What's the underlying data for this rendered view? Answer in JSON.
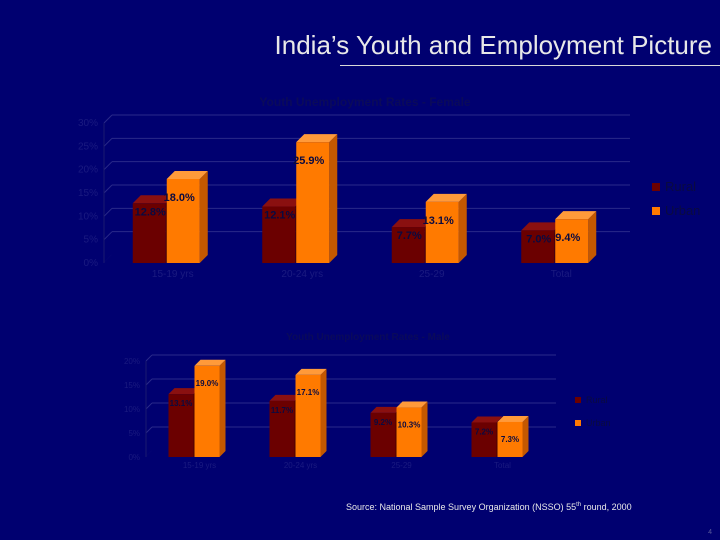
{
  "slide": {
    "title": "India’s Youth and Employment Picture",
    "source_prefix": "Source:  National Sample Survey Organization (NSSO) 55",
    "source_sup": "th",
    "source_suffix": " round, 2000",
    "page_number": "4"
  },
  "colors": {
    "background": "#000070",
    "rural": "#6b0000",
    "urban": "#ff7a00"
  },
  "chart_data": [
    {
      "type": "bar",
      "title": "Youth Unemployment Rates - Female",
      "categories": [
        "15-19 yrs",
        "20-24 yrs",
        "25-29",
        "Total"
      ],
      "series": [
        {
          "name": "Rural",
          "values": [
            12.8,
            12.1,
            7.7,
            7.0
          ],
          "labels": [
            "12.8%",
            "12.1%",
            "7.7%",
            "7.0%"
          ]
        },
        {
          "name": "Urban",
          "values": [
            18.0,
            25.9,
            13.1,
            9.4
          ],
          "labels": [
            "18.0%",
            "25.9%",
            "13.1%",
            "9.4%"
          ]
        }
      ],
      "yticks": [
        "0%",
        "5%",
        "10%",
        "15%",
        "20%",
        "25%",
        "30%"
      ],
      "ylim": [
        0,
        30
      ],
      "legend": "right"
    },
    {
      "type": "bar",
      "title": "Youth Unemployment Rates - Male",
      "categories": [
        "15-19 yrs",
        "20-24 yrs",
        "25-29",
        "Total"
      ],
      "series": [
        {
          "name": "Rural",
          "values": [
            13.1,
            11.7,
            9.2,
            7.2
          ],
          "labels": [
            "13.1%",
            "11.7%",
            "9.2%",
            "7.2%"
          ]
        },
        {
          "name": "Urban",
          "values": [
            19.0,
            17.1,
            10.3,
            7.3
          ],
          "labels": [
            "19.0%",
            "17.1%",
            "10.3%",
            "7.3%"
          ]
        }
      ],
      "yticks": [
        "0%",
        "5%",
        "10%",
        "15%",
        "20%"
      ],
      "ylim": [
        0,
        20
      ],
      "legend": "right"
    }
  ]
}
